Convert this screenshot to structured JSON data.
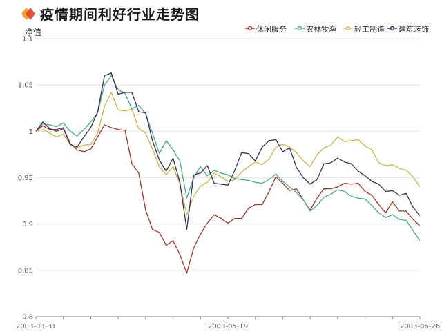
{
  "header": {
    "title": "疫情期间利好行业走势图"
  },
  "chart_data": {
    "type": "line",
    "title": "疫情期间利好行业走势图",
    "ylabel": "净值",
    "ylim": [
      0.8,
      1.1
    ],
    "yticks": [
      "0.8",
      "0.85",
      "0.9",
      "0.95",
      "1",
      "1.05",
      "1.1"
    ],
    "xticks": [
      "2003-03-31",
      "2003-05-19",
      "2003-06-26"
    ],
    "grid": "horizontal",
    "legend_position": "top-right",
    "series": [
      {
        "name": "休闲服务",
        "color": "#a0342f",
        "values": [
          1.0,
          1.006,
          1.002,
          1.002,
          1.004,
          0.987,
          0.98,
          0.978,
          0.981,
          0.994,
          1.007,
          1.004,
          1.002,
          1.001,
          0.965,
          0.955,
          0.915,
          0.894,
          0.891,
          0.877,
          0.882,
          0.867,
          0.847,
          0.874,
          0.889,
          0.901,
          0.91,
          0.906,
          0.901,
          0.906,
          0.906,
          0.917,
          0.921,
          0.921,
          0.935,
          0.951,
          0.944,
          0.936,
          0.938,
          0.926,
          0.915,
          0.928,
          0.938,
          0.938,
          0.94,
          0.944,
          0.943,
          0.944,
          0.935,
          0.931,
          0.921,
          0.912,
          0.924,
          0.914,
          0.914,
          0.905,
          0.898
        ]
      },
      {
        "name": "农林牧渔",
        "color": "#4aa886",
        "values": [
          1.0,
          1.008,
          1.007,
          1.005,
          1.009,
          1.0,
          0.995,
          1.002,
          1.01,
          1.02,
          1.05,
          1.06,
          1.045,
          1.041,
          1.024,
          1.028,
          1.019,
          0.998,
          0.976,
          0.99,
          0.98,
          0.968,
          0.928,
          0.95,
          0.962,
          0.952,
          0.958,
          0.955,
          0.953,
          0.949,
          0.948,
          0.947,
          0.945,
          0.944,
          0.948,
          0.954,
          0.946,
          0.94,
          0.934,
          0.926,
          0.914,
          0.92,
          0.929,
          0.932,
          0.937,
          0.935,
          0.93,
          0.928,
          0.927,
          0.92,
          0.912,
          0.907,
          0.91,
          0.905,
          0.904,
          0.893,
          0.882
        ]
      },
      {
        "name": "轻工制造",
        "color": "#c9b547",
        "values": [
          1.0,
          1.002,
          0.998,
          0.994,
          0.997,
          0.986,
          0.982,
          0.985,
          0.986,
          0.998,
          1.027,
          1.042,
          1.023,
          1.022,
          1.024,
          1.003,
          0.998,
          0.981,
          0.962,
          0.953,
          0.962,
          0.943,
          0.91,
          0.93,
          0.941,
          0.945,
          0.955,
          0.951,
          0.946,
          0.948,
          0.956,
          0.962,
          0.967,
          0.964,
          0.97,
          0.983,
          0.986,
          0.983,
          0.977,
          0.968,
          0.962,
          0.975,
          0.982,
          0.985,
          0.994,
          0.989,
          0.99,
          0.991,
          0.984,
          0.98,
          0.966,
          0.963,
          0.964,
          0.96,
          0.958,
          0.951,
          0.94
        ]
      },
      {
        "name": "建筑装饰",
        "color": "#3b2c54",
        "values": [
          1.0,
          1.01,
          1.003,
          1.0,
          1.003,
          0.986,
          0.983,
          0.994,
          1.004,
          1.021,
          1.06,
          1.063,
          1.04,
          1.042,
          1.042,
          1.021,
          1.02,
          0.99,
          0.969,
          0.957,
          0.971,
          0.945,
          0.894,
          0.953,
          0.955,
          0.963,
          0.944,
          0.943,
          0.942,
          0.958,
          0.977,
          0.976,
          0.968,
          0.983,
          0.99,
          0.991,
          0.978,
          0.982,
          0.961,
          0.95,
          0.943,
          0.948,
          0.965,
          0.966,
          0.971,
          0.967,
          0.965,
          0.957,
          0.952,
          0.946,
          0.943,
          0.935,
          0.936,
          0.931,
          0.933,
          0.918,
          0.909
        ]
      }
    ]
  }
}
